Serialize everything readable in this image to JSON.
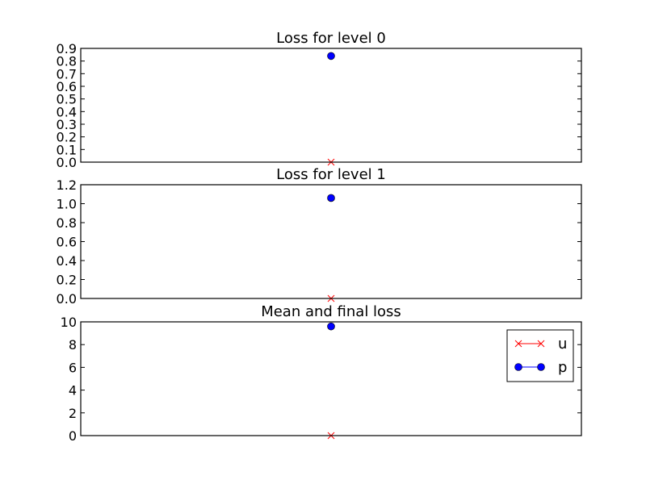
{
  "chart_data": [
    {
      "type": "line",
      "title": "Loss for level 0",
      "xlabel": "",
      "ylabel": "",
      "x": [
        0
      ],
      "ylim": [
        0,
        0.9
      ],
      "yticks": [
        "0.0",
        "0.1",
        "0.2",
        "0.3",
        "0.4",
        "0.5",
        "0.6",
        "0.7",
        "0.8",
        "0.9"
      ],
      "grid": false,
      "series": [
        {
          "name": "u",
          "values": [
            0.0
          ],
          "marker": "x",
          "color": "#ff0000"
        },
        {
          "name": "p",
          "values": [
            0.84
          ],
          "marker": "o",
          "color": "#0000ff"
        }
      ]
    },
    {
      "type": "line",
      "title": "Loss for level 1",
      "xlabel": "",
      "ylabel": "",
      "x": [
        0
      ],
      "ylim": [
        0,
        1.2
      ],
      "yticks": [
        "0.0",
        "0.2",
        "0.4",
        "0.6",
        "0.8",
        "1.0",
        "1.2"
      ],
      "grid": false,
      "series": [
        {
          "name": "u",
          "values": [
            0.0
          ],
          "marker": "x",
          "color": "#ff0000"
        },
        {
          "name": "p",
          "values": [
            1.06
          ],
          "marker": "o",
          "color": "#0000ff"
        }
      ]
    },
    {
      "type": "line",
      "title": "Mean and final loss",
      "xlabel": "",
      "ylabel": "",
      "x": [
        0
      ],
      "ylim": [
        0,
        10
      ],
      "yticks": [
        "0",
        "2",
        "4",
        "6",
        "8",
        "10"
      ],
      "grid": false,
      "legend": "top-right",
      "series": [
        {
          "name": "u",
          "values": [
            0.0
          ],
          "marker": "x",
          "color": "#ff0000"
        },
        {
          "name": "p",
          "values": [
            9.6
          ],
          "marker": "o",
          "color": "#0000ff"
        }
      ]
    }
  ]
}
